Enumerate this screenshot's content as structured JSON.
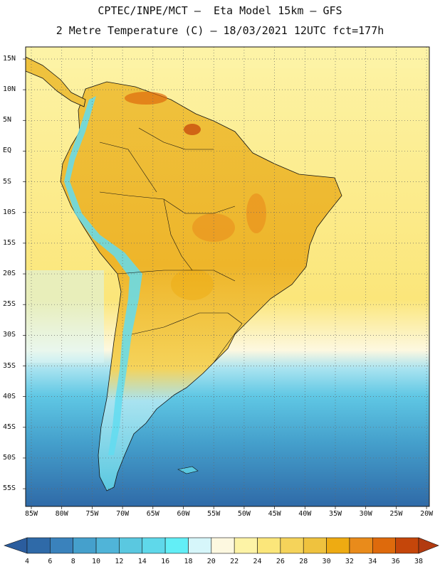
{
  "header": {
    "line1": "CPTEC/INPE/MCT –  Eta Model 15km – GFS",
    "line2": "2 Metre Temperature (C) – 18/03/2021 12UTC fct=177h"
  },
  "axes": {
    "lat_labels": [
      "15N",
      "10N",
      "5N",
      "EQ",
      "5S",
      "10S",
      "15S",
      "20S",
      "25S",
      "30S",
      "35S",
      "40S",
      "45S",
      "50S",
      "55S"
    ],
    "lon_labels": [
      "85W",
      "80W",
      "75W",
      "70W",
      "65W",
      "60W",
      "55W",
      "50W",
      "45W",
      "40W",
      "35W",
      "30W",
      "25W",
      "20W"
    ]
  },
  "colorbar": {
    "labels": [
      "4",
      "6",
      "8",
      "10",
      "12",
      "14",
      "16",
      "18",
      "20",
      "22",
      "24",
      "26",
      "28",
      "30",
      "32",
      "34",
      "36",
      "38"
    ],
    "colors": [
      "#2f6aa8",
      "#3a82bc",
      "#45a0cc",
      "#50b4d8",
      "#5ac8e0",
      "#5fd8ea",
      "#62eef6",
      "#d6f6fa",
      "#fdf8e0",
      "#fdf3a6",
      "#fbe67a",
      "#f5d35a",
      "#efc23e",
      "#eeab12",
      "#e98b1b",
      "#de6a0c",
      "#c5460a"
    ],
    "low_color": "#2b5d9e",
    "high_color": "#b23a10"
  },
  "colors": {
    "ocean_cold": "#3f86c1",
    "ocean_cool": "#5fb6dc",
    "ocean_mild": "#a9e3f0",
    "ocean_warm": "#fbe67a",
    "land_hot": "#efc23e",
    "land_very_hot": "#eeab12",
    "andes": "#62dcf0",
    "border": "#111111"
  }
}
